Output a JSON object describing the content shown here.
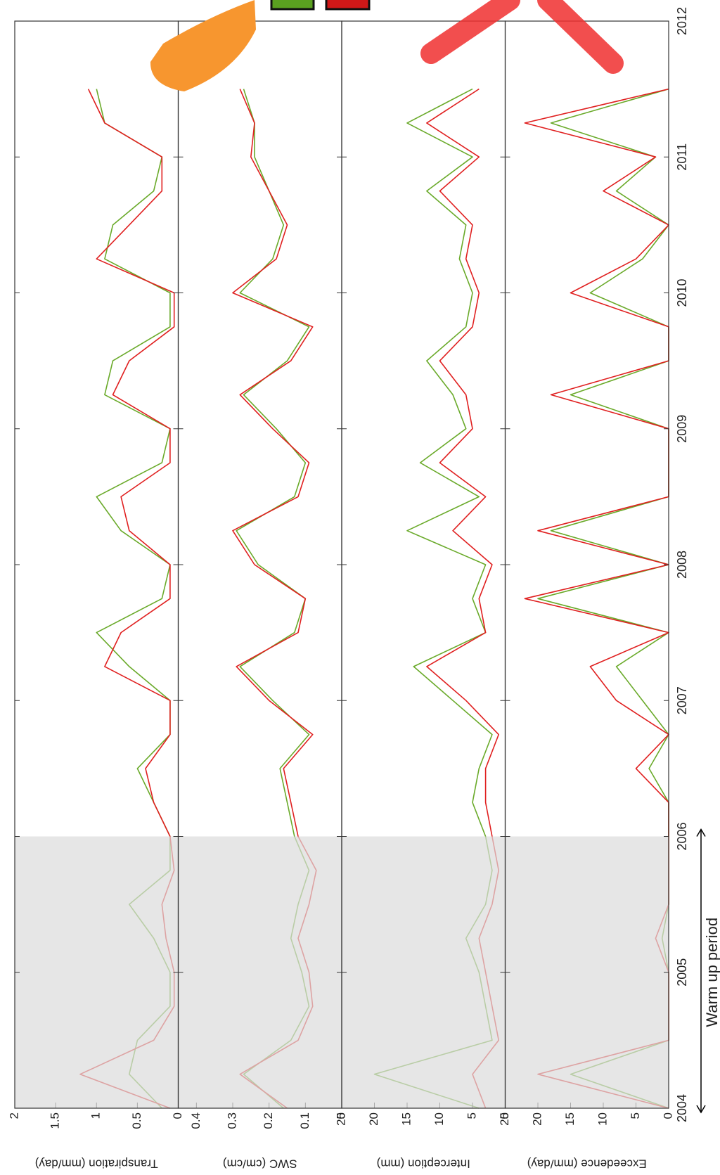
{
  "chart_data": [
    {
      "type": "line",
      "y_label": "Transpiration (mm/day)",
      "ylim": [
        0,
        2
      ],
      "yticks": [
        0,
        0.5,
        1,
        1.5,
        2
      ],
      "x": [
        2004,
        2004.25,
        2004.5,
        2004.75,
        2005,
        2005.25,
        2005.5,
        2005.75,
        2006,
        2006.25,
        2006.5,
        2006.75,
        2007,
        2007.25,
        2007.5,
        2007.75,
        2008,
        2008.25,
        2008.5,
        2008.75,
        2009,
        2009.25,
        2009.5,
        2009.75,
        2010,
        2010.25,
        2010.5,
        2010.75,
        2011,
        2011.25,
        2011.5
      ],
      "series": [
        {
          "color": "#6aaa2a",
          "values": [
            0.2,
            0.6,
            0.5,
            0.1,
            0.1,
            0.3,
            0.6,
            0.1,
            0.1,
            0.3,
            0.5,
            0.1,
            0.1,
            0.6,
            1.0,
            0.2,
            0.1,
            0.7,
            1.0,
            0.2,
            0.1,
            0.9,
            0.8,
            0.1,
            0.1,
            0.9,
            0.8,
            0.3,
            0.2,
            0.9,
            1.0
          ]
        },
        {
          "color": "#e02020",
          "values": [
            0.1,
            1.2,
            0.3,
            0.05,
            0.05,
            0.15,
            0.2,
            0.05,
            0.1,
            0.3,
            0.4,
            0.1,
            0.1,
            0.9,
            0.7,
            0.1,
            0.1,
            0.6,
            0.7,
            0.1,
            0.1,
            0.8,
            0.6,
            0.05,
            0.05,
            1.0,
            0.6,
            0.2,
            0.2,
            0.9,
            1.1
          ]
        }
      ]
    },
    {
      "type": "line",
      "y_label": "SWC (cm/cm)",
      "ylim": [
        0,
        0.45
      ],
      "yticks": [
        0,
        0.1,
        0.2,
        0.3,
        0.4
      ],
      "x": [
        2004,
        2004.25,
        2004.5,
        2004.75,
        2005,
        2005.25,
        2005.5,
        2005.75,
        2006,
        2006.25,
        2006.5,
        2006.75,
        2007,
        2007.25,
        2007.5,
        2007.75,
        2008,
        2008.25,
        2008.5,
        2008.75,
        2009,
        2009.25,
        2009.5,
        2009.75,
        2010,
        2010.25,
        2010.5,
        2010.75,
        2011,
        2011.25,
        2011.5
      ],
      "series": [
        {
          "color": "#6aaa2a",
          "values": [
            0.16,
            0.27,
            0.14,
            0.09,
            0.11,
            0.14,
            0.12,
            0.09,
            0.13,
            0.15,
            0.17,
            0.09,
            0.19,
            0.28,
            0.13,
            0.1,
            0.23,
            0.29,
            0.13,
            0.1,
            0.18,
            0.27,
            0.15,
            0.09,
            0.28,
            0.19,
            0.16,
            0.2,
            0.24,
            0.24,
            0.27
          ]
        },
        {
          "color": "#e02020",
          "values": [
            0.15,
            0.28,
            0.12,
            0.08,
            0.09,
            0.12,
            0.09,
            0.07,
            0.12,
            0.14,
            0.16,
            0.08,
            0.2,
            0.29,
            0.12,
            0.1,
            0.24,
            0.3,
            0.12,
            0.09,
            0.19,
            0.28,
            0.14,
            0.08,
            0.3,
            0.18,
            0.15,
            0.2,
            0.25,
            0.24,
            0.28
          ]
        }
      ]
    },
    {
      "type": "line",
      "y_label": "Interception (mm)",
      "ylim": [
        0,
        25
      ],
      "yticks": [
        0,
        5,
        10,
        15,
        20,
        25
      ],
      "x": [
        2004,
        2004.25,
        2004.5,
        2004.75,
        2005,
        2005.25,
        2005.5,
        2005.75,
        2006,
        2006.25,
        2006.5,
        2006.75,
        2007,
        2007.25,
        2007.5,
        2007.75,
        2008,
        2008.25,
        2008.5,
        2008.75,
        2009,
        2009.25,
        2009.5,
        2009.75,
        2010,
        2010.25,
        2010.5,
        2010.75,
        2011,
        2011.25,
        2011.5
      ],
      "series": [
        {
          "color": "#6aaa2a",
          "values": [
            4,
            20,
            2,
            3,
            4,
            6,
            3,
            2,
            3,
            5,
            4,
            2,
            8,
            14,
            3,
            5,
            3,
            15,
            4,
            13,
            6,
            8,
            12,
            6,
            5,
            7,
            6,
            12,
            5,
            15,
            5
          ]
        },
        {
          "color": "#e02020",
          "values": [
            3,
            5,
            1,
            2,
            3,
            4,
            2,
            1,
            2,
            3,
            3,
            1,
            6,
            12,
            3,
            4,
            2,
            8,
            3,
            10,
            5,
            6,
            10,
            5,
            4,
            6,
            5,
            10,
            4,
            12,
            4
          ]
        }
      ]
    },
    {
      "type": "line",
      "y_label": "Exceedence (mm/day)",
      "ylim": [
        0,
        25
      ],
      "yticks": [
        0,
        5,
        10,
        15,
        20,
        25
      ],
      "xlim": [
        2004,
        2012
      ],
      "xticks": [
        2004,
        2005,
        2006,
        2007,
        2008,
        2009,
        2010,
        2011,
        2012
      ],
      "annotations": [
        {
          "text": "Warm up period",
          "x": [
            2004,
            2006
          ]
        }
      ],
      "x": [
        2004,
        2004.25,
        2004.5,
        2004.75,
        2005,
        2005.25,
        2005.5,
        2005.75,
        2006,
        2006.25,
        2006.5,
        2006.75,
        2007,
        2007.25,
        2007.5,
        2007.75,
        2008,
        2008.25,
        2008.5,
        2008.75,
        2009,
        2009.25,
        2009.5,
        2009.75,
        2010,
        2010.25,
        2010.5,
        2010.75,
        2011,
        2011.25,
        2011.5
      ],
      "series": [
        {
          "color": "#6aaa2a",
          "values": [
            0,
            15,
            0,
            0,
            0,
            1,
            0,
            0,
            0,
            0,
            3,
            0,
            4,
            8,
            0,
            20,
            0,
            18,
            0,
            0,
            0,
            15,
            0,
            0,
            12,
            4,
            0,
            8,
            2,
            18,
            0
          ]
        },
        {
          "color": "#e02020",
          "values": [
            0,
            20,
            0,
            0,
            0,
            2,
            0,
            0,
            0,
            0,
            5,
            0,
            8,
            12,
            0,
            22,
            0,
            20,
            0,
            0,
            0,
            18,
            0,
            0,
            15,
            5,
            0,
            10,
            2,
            22,
            0
          ]
        }
      ]
    }
  ]
}
